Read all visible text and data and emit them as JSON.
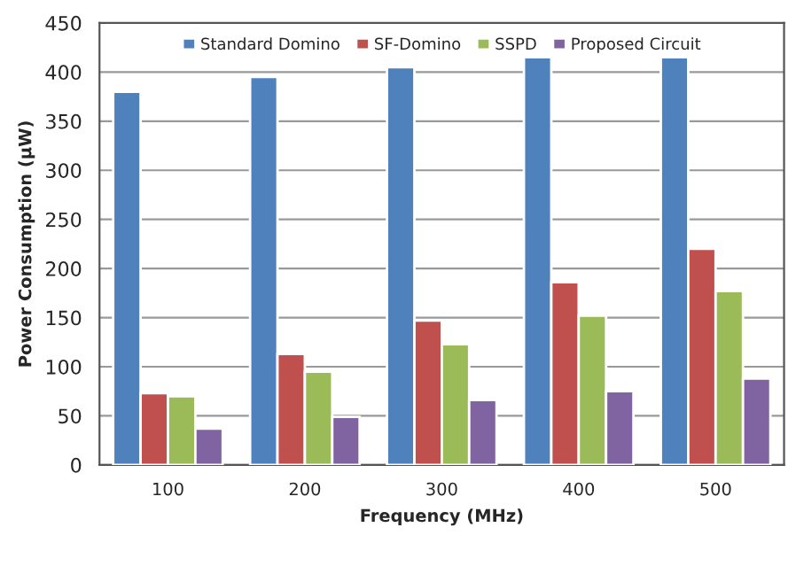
{
  "chart_data": {
    "type": "bar",
    "xlabel": "Frequency (MHz)",
    "ylabel": "Power Consumption (μW)",
    "categories": [
      "100",
      "200",
      "300",
      "400",
      "500"
    ],
    "series": [
      {
        "name": "Standard Domino",
        "color": "#4f81bd",
        "values": [
          380,
          395,
          405,
          415,
          415
        ]
      },
      {
        "name": "SF-Domino",
        "color": "#c0504d",
        "values": [
          73,
          113,
          147,
          186,
          220
        ]
      },
      {
        "name": "SSPD",
        "color": "#9bbb59",
        "values": [
          70,
          95,
          123,
          152,
          177
        ]
      },
      {
        "name": "Proposed Circuit",
        "color": "#8064a2",
        "values": [
          37,
          49,
          66,
          75,
          88
        ]
      }
    ],
    "ylim": [
      0,
      450
    ],
    "yticks": [
      0,
      50,
      100,
      150,
      200,
      250,
      300,
      350,
      400,
      450
    ],
    "grid": "y",
    "legend": "top"
  }
}
